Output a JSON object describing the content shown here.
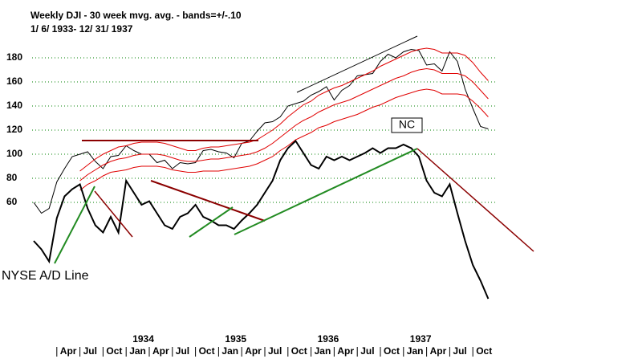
{
  "chart_data": {
    "type": "line",
    "title": "Weekly DJI - 30 week mvg. avg. - bands=+/-.10",
    "subtitle": "1/ 6/ 1933- 12/ 31/ 1937",
    "annotations": [
      "NYSE A/D Line",
      "NC"
    ],
    "categories": [
      null,
      null,
      null,
      "Apr",
      null,
      null,
      "Jul",
      null,
      null,
      "Oct",
      null,
      null,
      "Jan",
      null,
      null,
      "Apr",
      null,
      null,
      "Jul",
      null,
      null,
      "Oct",
      null,
      null,
      "Jan",
      null,
      null,
      "Apr",
      null,
      null,
      "Jul",
      null,
      null,
      "Oct",
      null,
      null,
      "Jan",
      null,
      null,
      "Apr",
      null,
      null,
      "Jul",
      null,
      null,
      "Oct",
      null,
      null,
      "Jan",
      null,
      null,
      "Apr",
      null,
      null,
      "Jul",
      null,
      null,
      "Oct",
      null,
      null
    ],
    "years": [
      "1934",
      "1935",
      "1936",
      "1937"
    ],
    "ylim": [
      -23,
      200
    ],
    "yticks": [
      60,
      80,
      100,
      120,
      140,
      160,
      180
    ],
    "grid": true,
    "grid_color": "#008000",
    "series": [
      {
        "color": "#000000",
        "line_width": 1,
        "values": [
          60,
          51,
          55,
          77,
          88,
          98,
          100,
          102,
          94,
          88,
          98,
          99,
          107,
          103,
          100,
          100,
          93,
          95,
          88,
          93,
          92,
          93,
          103,
          104,
          102,
          101,
          97,
          109,
          111,
          119,
          126,
          127,
          131,
          140,
          142,
          144,
          149,
          152,
          156,
          145,
          153,
          157,
          165,
          166,
          167,
          177,
          183,
          180,
          185,
          187,
          186,
          174,
          175,
          169,
          185,
          177,
          154,
          138,
          123,
          121
        ]
      },
      {
        "color": "#e00000",
        "line_width": 1,
        "values": [
          null,
          null,
          null,
          null,
          null,
          null,
          78,
          83,
          87,
          91,
          94,
          96,
          97,
          99,
          100,
          100,
          100,
          99,
          97,
          95,
          94,
          94,
          95,
          96,
          96,
          97,
          98,
          99,
          100,
          102,
          105,
          109,
          114,
          119,
          124,
          128,
          131,
          135,
          138,
          141,
          143,
          145,
          148,
          151,
          154,
          157,
          160,
          163,
          165,
          168,
          170,
          171,
          170,
          167,
          167,
          167,
          165,
          160,
          153,
          146
        ]
      },
      {
        "color": "#e00000",
        "line_width": 1,
        "values": [
          null,
          null,
          null,
          null,
          null,
          null,
          86,
          91,
          96,
          100,
          103,
          106,
          107,
          109,
          110,
          110,
          110,
          109,
          107,
          105,
          103,
          103,
          105,
          106,
          106,
          107,
          108,
          109,
          110,
          112,
          116,
          120,
          125,
          131,
          136,
          141,
          144,
          149,
          152,
          155,
          157,
          160,
          163,
          166,
          169,
          173,
          176,
          179,
          182,
          185,
          187,
          188,
          187,
          184,
          184,
          184,
          182,
          176,
          168,
          161
        ]
      },
      {
        "color": "#e00000",
        "line_width": 1,
        "values": [
          null,
          null,
          null,
          null,
          null,
          null,
          70,
          75,
          78,
          82,
          85,
          86,
          87,
          89,
          90,
          90,
          90,
          89,
          87,
          86,
          85,
          85,
          86,
          86,
          86,
          87,
          88,
          89,
          90,
          92,
          95,
          98,
          103,
          107,
          112,
          115,
          118,
          122,
          124,
          127,
          129,
          131,
          133,
          136,
          139,
          141,
          144,
          147,
          149,
          151,
          153,
          154,
          153,
          150,
          150,
          150,
          149,
          144,
          138,
          131
        ]
      },
      {
        "color": "#000000",
        "line_width": 2,
        "values": [
          28,
          21,
          11,
          47,
          65,
          71,
          75,
          55,
          41,
          35,
          48,
          35,
          78,
          68,
          58,
          61,
          51,
          41,
          38,
          48,
          51,
          58,
          48,
          45,
          41,
          41,
          38,
          45,
          51,
          58,
          68,
          78,
          95,
          105,
          111,
          101,
          91,
          88,
          98,
          95,
          98,
          95,
          98,
          101,
          105,
          101,
          105,
          105,
          108,
          105,
          98,
          78,
          68,
          65,
          75,
          51,
          28,
          8,
          -5,
          -20
        ]
      }
    ]
  }
}
